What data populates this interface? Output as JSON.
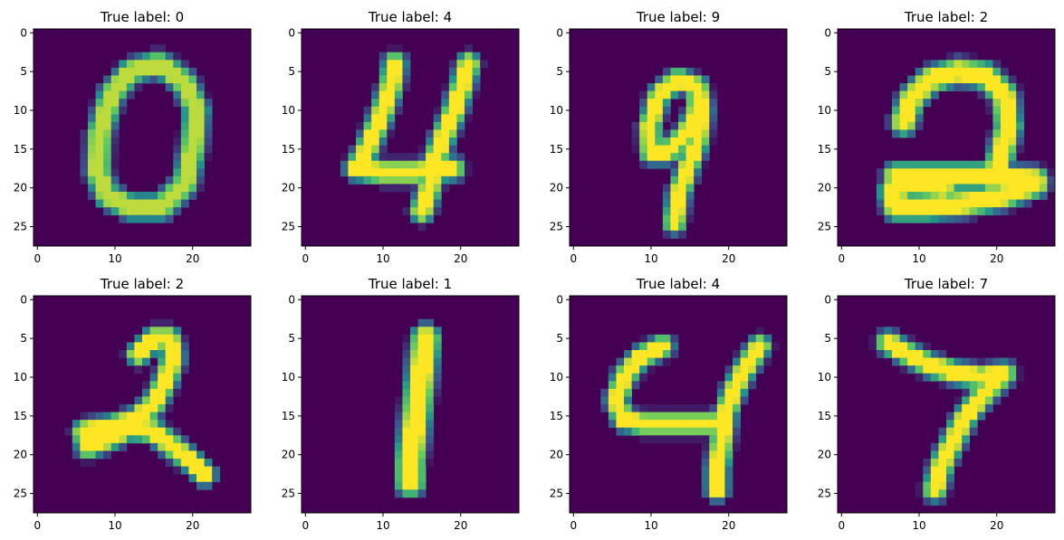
{
  "figure": {
    "colormap": {
      "background": "#440154",
      "low": "#3e4a89",
      "mid": "#26828e",
      "high": "#35b779",
      "peak": "#fde725"
    }
  },
  "chart_data": [
    {
      "type": "heatmap",
      "title": "True label: 0",
      "xticks": [
        0,
        10,
        20
      ],
      "yticks": [
        0,
        5,
        10,
        15,
        20,
        25
      ],
      "xlim": [
        -0.5,
        27.5
      ],
      "ylim": [
        27.5,
        -0.5
      ],
      "strokes": [
        [
          [
            15.5,
            4
          ],
          [
            12,
            5
          ],
          [
            9.5,
            8
          ],
          [
            8,
            13
          ],
          [
            7.8,
            18
          ],
          [
            9,
            21
          ],
          [
            12,
            22.5
          ],
          [
            16,
            22.5
          ],
          [
            19,
            19.5
          ],
          [
            20,
            15
          ],
          [
            20.5,
            10
          ],
          [
            19,
            6.5
          ],
          [
            16.5,
            4.5
          ]
        ]
      ],
      "width": 1.5,
      "peak": 0.9
    },
    {
      "type": "heatmap",
      "title": "True label: 4",
      "xticks": [
        0,
        10,
        20
      ],
      "yticks": [
        0,
        5,
        10,
        15,
        20,
        25
      ],
      "xlim": [
        -0.5,
        27.5
      ],
      "ylim": [
        27.5,
        -0.5
      ],
      "strokes": [
        [
          [
            11.5,
            4
          ],
          [
            11,
            7
          ],
          [
            10,
            10
          ],
          [
            8.8,
            13
          ],
          [
            7.5,
            16
          ],
          [
            6.5,
            17.5
          ]
        ],
        [
          [
            6.5,
            17.5
          ],
          [
            10,
            18
          ],
          [
            14,
            18
          ],
          [
            19,
            17.5
          ]
        ],
        [
          [
            21,
            4
          ],
          [
            20,
            7.5
          ],
          [
            19,
            10.5
          ],
          [
            17.5,
            14
          ],
          [
            16.5,
            17
          ],
          [
            16,
            20
          ],
          [
            15,
            23
          ]
        ]
      ],
      "width": 1.4,
      "peak": 1.0
    },
    {
      "type": "heatmap",
      "title": "True label: 9",
      "xticks": [
        0,
        10,
        20
      ],
      "yticks": [
        0,
        5,
        10,
        15,
        20,
        25
      ],
      "xlim": [
        -0.5,
        27.5
      ],
      "ylim": [
        27.5,
        -0.5
      ],
      "strokes": [
        [
          [
            16,
            7
          ],
          [
            13.5,
            6
          ],
          [
            11,
            8
          ],
          [
            9.8,
            12
          ],
          [
            10,
            15.5
          ],
          [
            12,
            15.5
          ],
          [
            14.5,
            13
          ],
          [
            16,
            10
          ],
          [
            16,
            7
          ]
        ],
        [
          [
            16,
            7
          ],
          [
            16.5,
            10
          ],
          [
            16,
            14
          ],
          [
            14.5,
            18
          ],
          [
            13.5,
            21
          ],
          [
            13,
            24.5
          ]
        ]
      ],
      "width": 1.3,
      "peak": 1.0
    },
    {
      "type": "heatmap",
      "title": "True label: 2",
      "xticks": [
        0,
        10,
        20
      ],
      "yticks": [
        0,
        5,
        10,
        15,
        20,
        25
      ],
      "xlim": [
        -0.5,
        27.5
      ],
      "ylim": [
        27.5,
        -0.5
      ],
      "strokes": [
        [
          [
            8,
            11.5
          ],
          [
            9,
            8.5
          ],
          [
            11.5,
            6
          ],
          [
            15,
            5
          ],
          [
            18.5,
            5.5
          ],
          [
            21,
            8
          ],
          [
            21.5,
            12
          ],
          [
            20.5,
            16
          ],
          [
            19.5,
            19
          ]
        ],
        [
          [
            7,
            18.5
          ],
          [
            12,
            18.5
          ],
          [
            18,
            18.5
          ],
          [
            25,
            19
          ]
        ],
        [
          [
            25,
            19.5
          ],
          [
            21,
            21
          ],
          [
            16,
            22
          ],
          [
            11,
            22.5
          ],
          [
            7,
            22.5
          ],
          [
            6.5,
            20.5
          ],
          [
            9,
            19.5
          ],
          [
            13,
            20
          ]
        ]
      ],
      "width": 1.6,
      "peak": 1.0
    },
    {
      "type": "heatmap",
      "title": "True label: 2",
      "xticks": [
        0,
        10,
        20
      ],
      "yticks": [
        0,
        5,
        10,
        15,
        20,
        25
      ],
      "xlim": [
        -0.5,
        27.5
      ],
      "ylim": [
        27.5,
        -0.5
      ],
      "strokes": [
        [
          [
            13,
            7
          ],
          [
            15,
            5
          ],
          [
            17,
            5
          ],
          [
            17.5,
            7.5
          ],
          [
            16.5,
            10.5
          ],
          [
            15,
            13.5
          ],
          [
            12.5,
            15.5
          ],
          [
            9,
            16.5
          ],
          [
            6,
            17
          ],
          [
            6.5,
            19
          ],
          [
            9,
            18
          ],
          [
            12,
            16.5
          ],
          [
            15,
            17
          ],
          [
            17.5,
            19
          ],
          [
            20,
            21
          ],
          [
            21.5,
            22.5
          ]
        ]
      ],
      "width": 1.4,
      "peak": 1.0
    },
    {
      "type": "heatmap",
      "title": "True label: 1",
      "xticks": [
        0,
        10,
        20
      ],
      "yticks": [
        0,
        5,
        10,
        15,
        20,
        25
      ],
      "xlim": [
        -0.5,
        27.5
      ],
      "ylim": [
        27.5,
        -0.5
      ],
      "strokes": [
        [
          [
            15.5,
            5
          ],
          [
            15,
            9
          ],
          [
            14.5,
            13
          ],
          [
            14,
            17
          ],
          [
            13.5,
            21
          ],
          [
            13.5,
            23.5
          ]
        ]
      ],
      "width": 1.8,
      "peak": 1.0
    },
    {
      "type": "heatmap",
      "title": "True label: 4",
      "xticks": [
        0,
        10,
        20
      ],
      "yticks": [
        0,
        5,
        10,
        15,
        20,
        25
      ],
      "xlim": [
        -0.5,
        27.5
      ],
      "ylim": [
        27.5,
        -0.5
      ],
      "strokes": [
        [
          [
            11.5,
            6
          ],
          [
            8.5,
            7.5
          ],
          [
            6.5,
            10
          ],
          [
            5.5,
            13
          ],
          [
            6.5,
            15.5
          ],
          [
            9,
            16
          ],
          [
            13,
            16
          ],
          [
            17,
            16
          ],
          [
            19.5,
            16
          ]
        ],
        [
          [
            24,
            6
          ],
          [
            22,
            9
          ],
          [
            20.5,
            12
          ],
          [
            19.5,
            15
          ],
          [
            19,
            19
          ],
          [
            18.5,
            22
          ],
          [
            18.5,
            24.5
          ]
        ]
      ],
      "width": 1.35,
      "peak": 1.0
    },
    {
      "type": "heatmap",
      "title": "True label: 7",
      "xticks": [
        0,
        10,
        20
      ],
      "yticks": [
        0,
        5,
        10,
        15,
        20,
        25
      ],
      "xlim": [
        -0.5,
        27.5
      ],
      "ylim": [
        27.5,
        -0.5
      ],
      "strokes": [
        [
          [
            6,
            5.5
          ],
          [
            8.5,
            7
          ],
          [
            11.5,
            8.5
          ],
          [
            15,
            9.5
          ],
          [
            18,
            10
          ],
          [
            21,
            9.5
          ]
        ],
        [
          [
            21,
            9.5
          ],
          [
            18.5,
            12
          ],
          [
            16,
            15
          ],
          [
            14.5,
            18
          ],
          [
            13,
            21
          ],
          [
            12,
            24.5
          ]
        ]
      ],
      "width": 1.4,
      "peak": 1.0
    }
  ]
}
